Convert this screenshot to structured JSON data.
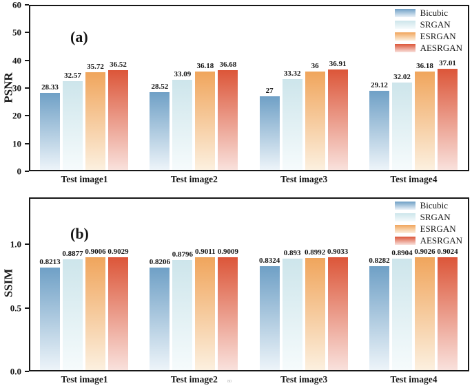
{
  "page": {
    "background": "#ffffff",
    "axis_color": "#161616",
    "footnote_mark": "80"
  },
  "series_colors": {
    "Bicubic": [
      "#6FA0C6",
      "#EDF4F9"
    ],
    "SRGAN": [
      "#CDE5EB",
      "#F6FBFC"
    ],
    "ESRGAN": [
      "#F0A55C",
      "#FCF0DF"
    ],
    "AESRGAN": [
      "#DC5639",
      "#F9E1DC"
    ]
  },
  "chart_data": [
    {
      "id": "a",
      "type": "bar",
      "panel_label": "(a)",
      "ylabel": "PSNR",
      "xlabel": "",
      "categories": [
        "Test image1",
        "Test image2",
        "Test image3",
        "Test image4"
      ],
      "series": [
        {
          "name": "Bicubic",
          "values": [
            28.33,
            28.52,
            27,
            29.12
          ],
          "labels": [
            "28.33",
            "28.52",
            "27",
            "29.12"
          ]
        },
        {
          "name": "SRGAN",
          "values": [
            32.57,
            33.09,
            33.32,
            32.02
          ],
          "labels": [
            "32.57",
            "33.09",
            "33.32",
            "32.02"
          ]
        },
        {
          "name": "ESRGAN",
          "values": [
            35.72,
            36.18,
            36,
            36.18
          ],
          "labels": [
            "35.72",
            "36.18",
            "36",
            "36.18"
          ]
        },
        {
          "name": "AESRGAN",
          "values": [
            36.52,
            36.68,
            36.91,
            37.01
          ],
          "labels": [
            "36.52",
            "36.68",
            "36.91",
            "37.01"
          ]
        }
      ],
      "yticks": [
        0,
        10,
        20,
        30,
        40,
        50,
        60
      ],
      "ytick_labels": [
        "0",
        "10",
        "20",
        "30",
        "40",
        "50",
        "60"
      ],
      "ylim": [
        0,
        60
      ],
      "legend": [
        "Bicubic",
        "SRGAN",
        "ESRGAN",
        "AESRGAN"
      ],
      "legend_position": "top-right",
      "grid": false
    },
    {
      "id": "b",
      "type": "bar",
      "panel_label": "(b)",
      "ylabel": "SSIM",
      "xlabel": "",
      "categories": [
        "Test image1",
        "Test image2",
        "Test image3",
        "Test image4"
      ],
      "series": [
        {
          "name": "Bicubic",
          "values": [
            0.8213,
            0.8206,
            0.8324,
            0.8282
          ],
          "labels": [
            "0.8213",
            "0.8206",
            "0.8324",
            "0.8282"
          ]
        },
        {
          "name": "SRGAN",
          "values": [
            0.8877,
            0.8796,
            0.893,
            0.8904
          ],
          "labels": [
            "0.8877",
            "0.8796",
            "0.893",
            "0.8904"
          ]
        },
        {
          "name": "ESRGAN",
          "values": [
            0.9006,
            0.9011,
            0.8992,
            0.9026
          ],
          "labels": [
            "0.9006",
            "0.9011",
            "0.8992",
            "0.9026"
          ]
        },
        {
          "name": "AESRGAN",
          "values": [
            0.9029,
            0.9009,
            0.9033,
            0.9024
          ],
          "labels": [
            "0.9029",
            "0.9009",
            "0.9033",
            "0.9024"
          ]
        }
      ],
      "yticks": [
        0,
        0.5,
        1.0
      ],
      "ytick_labels": [
        "0.0",
        "0.5",
        "1.0"
      ],
      "ylim": [
        0,
        1.37
      ],
      "legend": [
        "Bicubic",
        "SRGAN",
        "ESRGAN",
        "AESRGAN"
      ],
      "legend_position": "top-right",
      "grid": false
    }
  ]
}
